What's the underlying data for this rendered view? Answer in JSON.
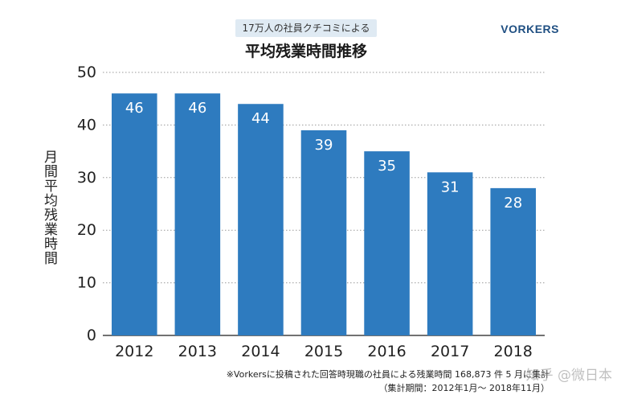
{
  "header": {
    "badge": "17万人の社員クチコミによる",
    "title": "平均残業時間推移",
    "brand": "VORKERS"
  },
  "footnote": {
    "line1": "※Vorkersに投稿された回答時現職の社員による残業時間 168,873 件 5 月に集計",
    "line2": "（集計期間：2012年1月〜 2018年11月）"
  },
  "watermark": "知乎 @微日本",
  "colors": {
    "bar": "#2e7bbf",
    "bar_label": "#ffffff",
    "grid": "#9a9a9a",
    "axis": "#444444",
    "badge_bg": "#dfeaf3",
    "brand": "#1f4f82"
  },
  "chart_data": {
    "type": "bar",
    "title": "平均残業時間推移",
    "xlabel": "",
    "ylabel": "月間平均残業時間",
    "categories": [
      "2012",
      "2013",
      "2014",
      "2015",
      "2016",
      "2017",
      "2018"
    ],
    "values": [
      46,
      46,
      44,
      39,
      35,
      31,
      28
    ],
    "ylim": [
      0,
      50
    ],
    "yticks": [
      0,
      10,
      20,
      30,
      40,
      50
    ],
    "grid": true,
    "grid_style": "dotted horizontal",
    "data_labels": true
  }
}
